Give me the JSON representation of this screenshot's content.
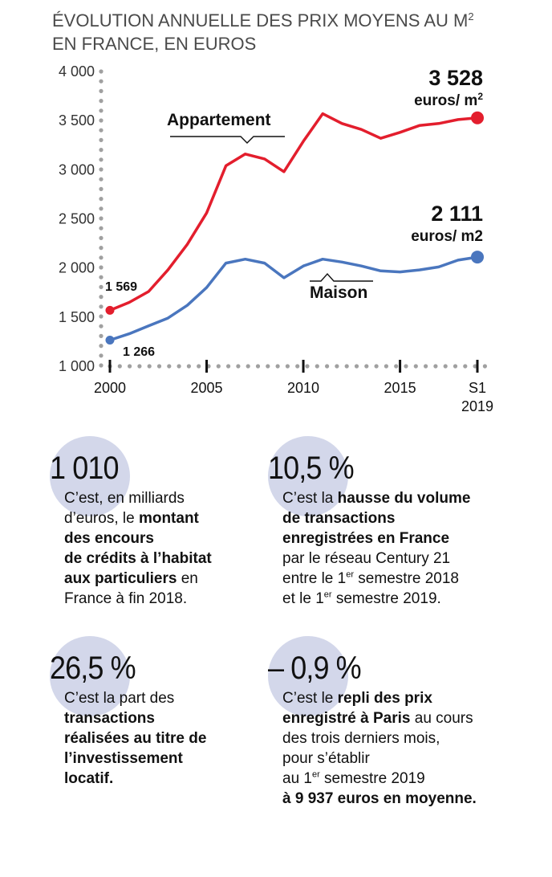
{
  "chart_data": {
    "type": "line",
    "title_line1": "ÉVOLUTION ANNUELLE DES PRIX MOYENS AU M",
    "title_sup": "2",
    "title_line2": "EN FRANCE, EN EUROS",
    "y_ticks": [
      "4 000",
      "3 500",
      "3 000",
      "2 500",
      "2 000",
      "1 500",
      "1 000"
    ],
    "ylim": [
      1000,
      4000
    ],
    "x_ticks": [
      "2000",
      "2005",
      "2010",
      "2015",
      "S1"
    ],
    "x_last_sub": "2019",
    "x": [
      "2000",
      "2001",
      "2002",
      "2003",
      "2004",
      "2005",
      "2006",
      "2007",
      "2008",
      "2009",
      "2010",
      "2011",
      "2012",
      "2013",
      "2014",
      "2015",
      "2016",
      "2017",
      "2018",
      "S1 2019"
    ],
    "series": [
      {
        "name": "Appartement",
        "color": "#e31e2d",
        "values": [
          1569,
          1650,
          1760,
          1980,
          2240,
          2560,
          3040,
          3160,
          3110,
          2980,
          3290,
          3570,
          3470,
          3410,
          3320,
          3380,
          3450,
          3470,
          3510,
          3528
        ],
        "end_value": "3 528",
        "end_unit": "euros/ m",
        "end_unit_sup": "2",
        "start_value": "1 569"
      },
      {
        "name": "Maison",
        "color": "#4a76be",
        "values": [
          1266,
          1330,
          1410,
          1490,
          1620,
          1800,
          2050,
          2090,
          2050,
          1900,
          2020,
          2090,
          2060,
          2020,
          1970,
          1960,
          1980,
          2010,
          2080,
          2111
        ],
        "end_value": "2 111",
        "end_unit": "euros/ m2",
        "start_value": "1 266"
      }
    ]
  },
  "stats": [
    {
      "number": "1 010",
      "text_html": "C’est, en milliards<br>d’euros, le <b>montant<br>des encours<br>de crédits à l’habitat<br>aux particuliers</b> en<br>France à fin 2018."
    },
    {
      "number": "10,5 %",
      "text_html": "C’est la <b>hausse du volume<br>de transactions<br>enregistrées en France</b><br>par le réseau Century 21<br>entre le 1<sup>er</sup> semestre 2018<br>et le 1<sup>er</sup> semestre 2019."
    },
    {
      "number": "26,5 %",
      "text_html": "C’est la part des<br><b>transactions<br>réalisées au titre de<br>l’investissement<br>locatif.</b>"
    },
    {
      "number": "– 0,9 %",
      "text_html": "C’est le <b>repli des prix<br>enregistré à Paris</b> au cours<br>des trois derniers mois,<br>pour s’établir<br>au 1<sup>er</sup> semestre 2019<br><b>à 9 937 euros en moyenne.</b>"
    }
  ]
}
